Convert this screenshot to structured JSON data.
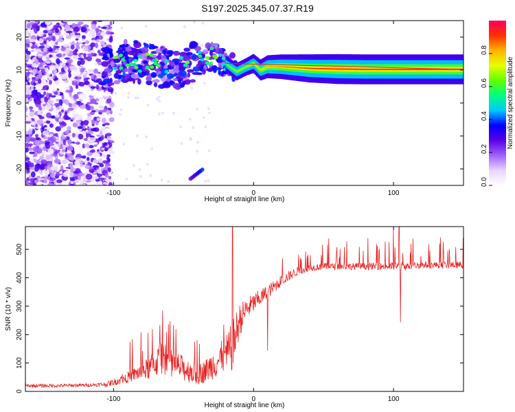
{
  "title": "S197.2025.345.07.37.R19",
  "colors": {
    "snr_line": "#e82020",
    "spec_colormap": [
      "#ffffff",
      "#e9d5ff",
      "#a060ff",
      "#5a00e6",
      "#0000ff",
      "#00c8ff",
      "#00ff80",
      "#60ff00",
      "#e6ff00",
      "#ffb400",
      "#ff3000",
      "#ff0060"
    ]
  },
  "chart_data": [
    {
      "type": "heatmap",
      "name": "spectrogram",
      "title": "S197.2025.345.07.37.R19",
      "xlabel": "Height of straight line (km)",
      "ylabel": "Frequency (Hz)",
      "xlim": [
        -163,
        150
      ],
      "ylim": [
        -25,
        25
      ],
      "xticks": [
        -100,
        0,
        100
      ],
      "yticks": [
        -20,
        -10,
        0,
        10,
        20
      ],
      "colorbar": {
        "label": "Normalized spectral amplitude",
        "range": [
          0,
          1
        ],
        "ticks": [
          "0.0",
          "0.2",
          "0.4",
          "0.6",
          "0.8"
        ],
        "tick_values": [
          0.0,
          0.2,
          0.4,
          0.6,
          0.8
        ]
      },
      "ridge": {
        "x": [
          -105,
          -90,
          -75,
          -60,
          -45,
          -30,
          -20,
          -12,
          -5,
          0,
          5,
          10,
          20,
          40,
          60,
          80,
          100,
          120,
          150
        ],
        "freq": [
          11,
          13,
          12,
          10,
          12,
          14,
          12,
          9.5,
          11,
          12,
          10,
          11,
          11,
          10.5,
          10.3,
          10.2,
          10.2,
          10.2,
          10.2
        ],
        "amplitude": [
          0.25,
          0.3,
          0.3,
          0.35,
          0.35,
          0.45,
          0.55,
          0.6,
          0.6,
          0.65,
          0.7,
          0.75,
          0.8,
          0.9,
          0.95,
          0.95,
          0.95,
          0.95,
          0.95
        ]
      }
    },
    {
      "type": "line",
      "name": "snr",
      "xlabel": "Height of straight line (km)",
      "ylabel": "SNR (10 * v/v)",
      "xlim": [
        -163,
        150
      ],
      "ylim": [
        0,
        580
      ],
      "xticks": [
        -100,
        0,
        100
      ],
      "yticks": [
        0,
        100,
        200,
        300,
        400,
        500
      ],
      "series": [
        {
          "name": "SNR",
          "x": [
            -163,
            -140,
            -120,
            -105,
            -95,
            -85,
            -75,
            -70,
            -65,
            -60,
            -55,
            -50,
            -45,
            -40,
            -35,
            -30,
            -25,
            -20,
            -15,
            -10,
            -5,
            0,
            5,
            10,
            15,
            20,
            30,
            40,
            50,
            60,
            70,
            80,
            90,
            100,
            110,
            120,
            130,
            140,
            150
          ],
          "y": [
            20,
            20,
            22,
            25,
            40,
            60,
            80,
            100,
            120,
            110,
            90,
            80,
            70,
            60,
            70,
            90,
            110,
            120,
            160,
            250,
            290,
            310,
            330,
            350,
            370,
            390,
            420,
            435,
            440,
            440,
            440,
            440,
            440,
            440,
            440,
            445,
            445,
            445,
            445
          ],
          "spread": [
            6,
            6,
            6,
            8,
            15,
            25,
            40,
            50,
            60,
            55,
            50,
            45,
            40,
            38,
            40,
            50,
            60,
            70,
            90,
            60,
            40,
            35,
            30,
            25,
            22,
            20,
            15,
            12,
            12,
            12,
            12,
            12,
            12,
            15,
            12,
            12,
            12,
            12,
            12
          ]
        }
      ],
      "spikes": [
        {
          "x": -15,
          "y": 580
        },
        {
          "x": 100,
          "y": 570
        },
        {
          "x": 104,
          "y": 580
        },
        {
          "x": 105,
          "y": 243
        },
        {
          "x": -65,
          "y": 285
        },
        {
          "x": 10,
          "y": 143
        }
      ]
    }
  ]
}
